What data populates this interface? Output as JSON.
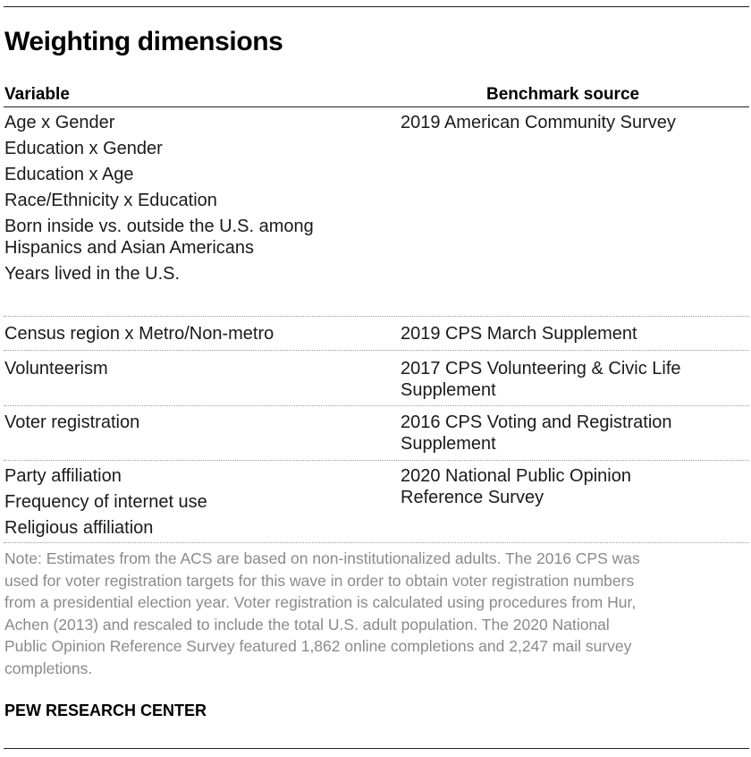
{
  "title": "Weighting dimensions",
  "headers": {
    "variable": "Variable",
    "source": "Benchmark source"
  },
  "groups": [
    {
      "variables": [
        "Age x Gender",
        "Education x Gender",
        "Education x Age",
        "Race/Ethnicity x Education",
        "Born inside vs. outside the U.S. among",
        "Hispanics and Asian Americans",
        "Years lived in the U.S."
      ],
      "source": [
        "2019 American Community Survey"
      ]
    },
    {
      "variables": [
        "Census region x Metro/Non-metro"
      ],
      "source": [
        "2019 CPS March Supplement"
      ]
    },
    {
      "variables": [
        "Volunteerism"
      ],
      "source": [
        "2017 CPS Volunteering & Civic Life",
        "Supplement"
      ]
    },
    {
      "variables": [
        "Voter registration"
      ],
      "source": [
        "2016 CPS Voting and Registration",
        "Supplement"
      ]
    },
    {
      "variables": [
        "Party affiliation",
        "Frequency of internet use",
        "Religious affiliation"
      ],
      "source": [
        "2020 National Public Opinion",
        "Reference Survey"
      ]
    }
  ],
  "note": [
    "Note: Estimates from the ACS are based on non-institutionalized adults.  The 2016 CPS was",
    "used for voter registration targets for this wave in order to obtain voter registration numbers",
    "from a presidential election year. Voter registration is calculated using procedures from Hur,",
    "Achen (2013) and rescaled to include the total U.S. adult population. The 2020 National",
    "Public Opinion Reference Survey featured 1,862 online completions and 2,247 mail survey",
    "completions."
  ],
  "source_credit": "PEW RESEARCH CENTER"
}
